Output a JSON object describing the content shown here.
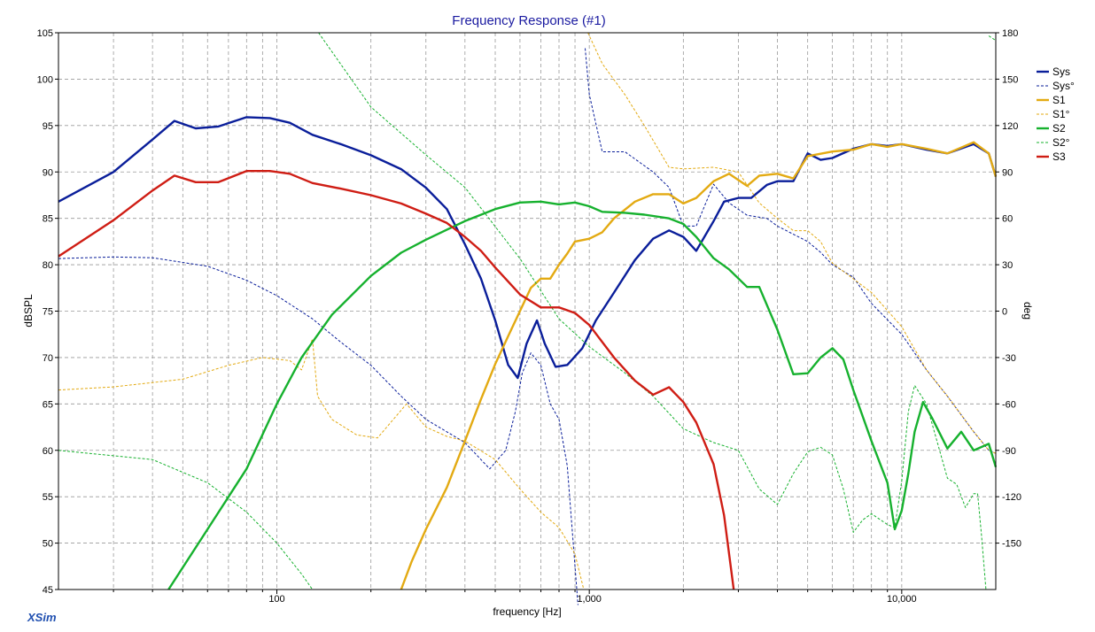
{
  "app": {
    "brand": "XSim"
  },
  "chart_data": {
    "type": "line",
    "title": "Frequency Response (#1)",
    "xlabel": "frequency [Hz]",
    "ylabel": "dBSPL",
    "y2label": "deg",
    "x_scale": "log",
    "xlim": [
      20,
      20000
    ],
    "ylim": [
      45,
      105
    ],
    "y2lim": [
      -180,
      180
    ],
    "grid": true,
    "legend_position": "right",
    "x_tick_labels": [
      {
        "value": 100,
        "label": "100"
      },
      {
        "value": 1000,
        "label": "1,000"
      },
      {
        "value": 10000,
        "label": "10,000"
      }
    ],
    "y_ticks": [
      45,
      50,
      55,
      60,
      65,
      70,
      75,
      80,
      85,
      90,
      95,
      100,
      105
    ],
    "y2_ticks": [
      -150,
      -120,
      -90,
      -60,
      -30,
      0,
      30,
      60,
      90,
      120,
      150,
      180
    ],
    "series": [
      {
        "name": "Sys",
        "axis": "left",
        "style": "solid",
        "color": "#0a1e9a",
        "points": [
          [
            20,
            86.8
          ],
          [
            30,
            90
          ],
          [
            40,
            93.5
          ],
          [
            47,
            95.5
          ],
          [
            55,
            94.7
          ],
          [
            65,
            94.9
          ],
          [
            80,
            95.9
          ],
          [
            95,
            95.8
          ],
          [
            110,
            95.3
          ],
          [
            130,
            94
          ],
          [
            160,
            93
          ],
          [
            200,
            91.8
          ],
          [
            250,
            90.3
          ],
          [
            300,
            88.3
          ],
          [
            350,
            86
          ],
          [
            400,
            82.2
          ],
          [
            450,
            78.5
          ],
          [
            500,
            74
          ],
          [
            550,
            69.2
          ],
          [
            590,
            67.8
          ],
          [
            630,
            71.5
          ],
          [
            680,
            74
          ],
          [
            720,
            71.5
          ],
          [
            780,
            69
          ],
          [
            850,
            69.2
          ],
          [
            950,
            71
          ],
          [
            1050,
            74
          ],
          [
            1200,
            77
          ],
          [
            1400,
            80.5
          ],
          [
            1600,
            82.8
          ],
          [
            1800,
            83.7
          ],
          [
            2000,
            83
          ],
          [
            2200,
            81.5
          ],
          [
            2500,
            84.7
          ],
          [
            2700,
            86.8
          ],
          [
            3000,
            87.2
          ],
          [
            3300,
            87.2
          ],
          [
            3700,
            88.6
          ],
          [
            4000,
            89
          ],
          [
            4500,
            89
          ],
          [
            5000,
            92
          ],
          [
            5500,
            91.3
          ],
          [
            6000,
            91.5
          ],
          [
            7000,
            92.5
          ],
          [
            8000,
            93
          ],
          [
            9000,
            92.8
          ],
          [
            10000,
            93
          ],
          [
            12000,
            92.4
          ],
          [
            14000,
            92
          ],
          [
            17000,
            93
          ],
          [
            19000,
            92
          ],
          [
            20000,
            89.5
          ]
        ]
      },
      {
        "name": "Sys°",
        "axis": "right",
        "style": "dashed",
        "color": "#0a1e9a",
        "points": [
          [
            20,
            34
          ],
          [
            30,
            35
          ],
          [
            40,
            34.5
          ],
          [
            60,
            29
          ],
          [
            80,
            20
          ],
          [
            100,
            10
          ],
          [
            130,
            -5
          ],
          [
            160,
            -20
          ],
          [
            200,
            -35
          ],
          [
            250,
            -55
          ],
          [
            300,
            -70
          ],
          [
            400,
            -85
          ],
          [
            480,
            -102
          ],
          [
            540,
            -90
          ],
          [
            580,
            -65
          ],
          [
            610,
            -40
          ],
          [
            650,
            -27
          ],
          [
            700,
            -35
          ],
          [
            750,
            -60
          ],
          [
            800,
            -70
          ],
          [
            850,
            -100
          ],
          [
            920,
            -190
          ],
          [
            970,
            170
          ],
          [
            1000,
            140
          ],
          [
            1100,
            103
          ],
          [
            1300,
            103
          ],
          [
            1600,
            90
          ],
          [
            1800,
            80
          ],
          [
            2000,
            55
          ],
          [
            2200,
            55
          ],
          [
            2500,
            82
          ],
          [
            2800,
            70
          ],
          [
            3200,
            62
          ],
          [
            3700,
            60
          ],
          [
            4000,
            55
          ],
          [
            5000,
            45
          ],
          [
            5500,
            38
          ],
          [
            6000,
            30
          ],
          [
            7000,
            22
          ],
          [
            8000,
            5
          ],
          [
            10000,
            -15
          ],
          [
            12000,
            -38
          ],
          [
            14000,
            -55
          ],
          [
            17000,
            -78
          ],
          [
            19000,
            -90
          ],
          [
            20000,
            -92
          ]
        ]
      },
      {
        "name": "S1",
        "axis": "left",
        "style": "solid",
        "color": "#e3aa12",
        "points": [
          [
            250,
            45
          ],
          [
            270,
            48
          ],
          [
            300,
            51.5
          ],
          [
            350,
            56
          ],
          [
            400,
            61
          ],
          [
            450,
            65.5
          ],
          [
            500,
            69.3
          ],
          [
            550,
            72.3
          ],
          [
            600,
            75
          ],
          [
            650,
            77.5
          ],
          [
            700,
            78.5
          ],
          [
            750,
            78.5
          ],
          [
            800,
            80
          ],
          [
            850,
            81.2
          ],
          [
            900,
            82.5
          ],
          [
            1000,
            82.8
          ],
          [
            1100,
            83.5
          ],
          [
            1200,
            85
          ],
          [
            1400,
            86.8
          ],
          [
            1600,
            87.6
          ],
          [
            1800,
            87.6
          ],
          [
            2000,
            86.6
          ],
          [
            2200,
            87.2
          ],
          [
            2500,
            89
          ],
          [
            2800,
            89.8
          ],
          [
            3200,
            88.5
          ],
          [
            3500,
            89.6
          ],
          [
            4000,
            89.8
          ],
          [
            4500,
            89.3
          ],
          [
            5000,
            91.7
          ],
          [
            6000,
            92.2
          ],
          [
            7000,
            92.4
          ],
          [
            8000,
            93
          ],
          [
            9000,
            92.7
          ],
          [
            10000,
            93
          ],
          [
            12000,
            92.5
          ],
          [
            14000,
            92
          ],
          [
            17000,
            93.2
          ],
          [
            19000,
            92
          ],
          [
            20000,
            89.5
          ]
        ]
      },
      {
        "name": "S1°",
        "axis": "right",
        "style": "dashed",
        "color": "#e3aa12",
        "points": [
          [
            20,
            -51
          ],
          [
            30,
            -49
          ],
          [
            50,
            -44
          ],
          [
            70,
            -35
          ],
          [
            90,
            -30
          ],
          [
            110,
            -32
          ],
          [
            120,
            -38
          ],
          [
            130,
            -18
          ],
          [
            135,
            -55
          ],
          [
            150,
            -70
          ],
          [
            180,
            -80
          ],
          [
            210,
            -82
          ],
          [
            260,
            -60
          ],
          [
            300,
            -75
          ],
          [
            350,
            -81
          ],
          [
            400,
            -84
          ],
          [
            500,
            -96
          ],
          [
            600,
            -115
          ],
          [
            700,
            -130
          ],
          [
            800,
            -140
          ],
          [
            900,
            -157
          ],
          [
            960,
            -180
          ],
          [
            990,
            180
          ],
          [
            1100,
            160
          ],
          [
            1300,
            140
          ],
          [
            1500,
            120
          ],
          [
            1800,
            93
          ],
          [
            2000,
            92
          ],
          [
            2500,
            93
          ],
          [
            3000,
            90
          ],
          [
            3500,
            70
          ],
          [
            4000,
            60
          ],
          [
            4500,
            52
          ],
          [
            5000,
            52
          ],
          [
            5500,
            45
          ],
          [
            6000,
            31
          ],
          [
            8000,
            12
          ],
          [
            10000,
            -10
          ],
          [
            12000,
            -38
          ],
          [
            14000,
            -55
          ],
          [
            17000,
            -78
          ],
          [
            19000,
            -90
          ],
          [
            20000,
            -92
          ]
        ]
      },
      {
        "name": "S2",
        "axis": "left",
        "style": "solid",
        "color": "#16b12e",
        "points": [
          [
            45,
            45
          ],
          [
            60,
            51.5
          ],
          [
            80,
            58
          ],
          [
            100,
            65
          ],
          [
            120,
            70
          ],
          [
            150,
            74.6
          ],
          [
            200,
            78.8
          ],
          [
            250,
            81.3
          ],
          [
            300,
            82.7
          ],
          [
            400,
            84.7
          ],
          [
            500,
            86
          ],
          [
            600,
            86.7
          ],
          [
            700,
            86.8
          ],
          [
            800,
            86.5
          ],
          [
            900,
            86.7
          ],
          [
            1000,
            86.3
          ],
          [
            1100,
            85.7
          ],
          [
            1300,
            85.6
          ],
          [
            1500,
            85.4
          ],
          [
            1800,
            85
          ],
          [
            2000,
            84.4
          ],
          [
            2200,
            83
          ],
          [
            2500,
            80.7
          ],
          [
            2800,
            79.5
          ],
          [
            3200,
            77.6
          ],
          [
            3500,
            77.6
          ],
          [
            4000,
            73
          ],
          [
            4500,
            68.2
          ],
          [
            5000,
            68.3
          ],
          [
            5500,
            70
          ],
          [
            6000,
            71
          ],
          [
            6500,
            69.8
          ],
          [
            7000,
            66.5
          ],
          [
            8000,
            61
          ],
          [
            9000,
            56.5
          ],
          [
            9500,
            51.5
          ],
          [
            10000,
            53.5
          ],
          [
            10500,
            57.5
          ],
          [
            11000,
            62
          ],
          [
            11700,
            65.2
          ],
          [
            12500,
            63.5
          ],
          [
            14000,
            60.2
          ],
          [
            15500,
            62
          ],
          [
            17000,
            60
          ],
          [
            19000,
            60.7
          ],
          [
            20000,
            58.2
          ]
        ]
      },
      {
        "name": "S2°",
        "axis": "right",
        "style": "dashed",
        "color": "#16b12e",
        "points": [
          [
            20,
            -90
          ],
          [
            40,
            -96
          ],
          [
            60,
            -111
          ],
          [
            80,
            -130
          ],
          [
            100,
            -150
          ],
          [
            120,
            -170
          ],
          [
            130,
            -180
          ],
          [
            136,
            180
          ],
          [
            200,
            132
          ],
          [
            300,
            101
          ],
          [
            400,
            80
          ],
          [
            600,
            34
          ],
          [
            800,
            -5
          ],
          [
            1000,
            -23
          ],
          [
            1300,
            -40
          ],
          [
            1600,
            -55
          ],
          [
            2000,
            -76
          ],
          [
            2500,
            -85
          ],
          [
            3000,
            -90
          ],
          [
            3500,
            -115
          ],
          [
            4000,
            -125
          ],
          [
            4500,
            -105
          ],
          [
            5000,
            -91
          ],
          [
            5500,
            -88
          ],
          [
            6000,
            -93
          ],
          [
            6500,
            -115
          ],
          [
            7000,
            -143
          ],
          [
            7500,
            -135
          ],
          [
            8000,
            -131
          ],
          [
            9000,
            -138
          ],
          [
            9500,
            -140
          ],
          [
            10000,
            -110
          ],
          [
            10500,
            -65
          ],
          [
            11000,
            -48
          ],
          [
            12000,
            -60
          ],
          [
            14000,
            -108
          ],
          [
            15000,
            -112
          ],
          [
            16000,
            -127
          ],
          [
            17000,
            -118
          ],
          [
            17500,
            -118
          ],
          [
            18000,
            -145
          ],
          [
            18600,
            -180
          ],
          [
            19000,
            178
          ],
          [
            20000,
            175
          ]
        ]
      },
      {
        "name": "S3",
        "axis": "left",
        "style": "solid",
        "color": "#cf1d14",
        "points": [
          [
            20,
            80.9
          ],
          [
            30,
            84.8
          ],
          [
            40,
            88
          ],
          [
            47,
            89.6
          ],
          [
            55,
            88.9
          ],
          [
            65,
            88.9
          ],
          [
            80,
            90.1
          ],
          [
            95,
            90.1
          ],
          [
            110,
            89.8
          ],
          [
            130,
            88.8
          ],
          [
            160,
            88.2
          ],
          [
            200,
            87.5
          ],
          [
            250,
            86.6
          ],
          [
            300,
            85.5
          ],
          [
            350,
            84.5
          ],
          [
            400,
            83
          ],
          [
            450,
            81.5
          ],
          [
            500,
            79.7
          ],
          [
            600,
            76.8
          ],
          [
            700,
            75.4
          ],
          [
            800,
            75.4
          ],
          [
            900,
            74.8
          ],
          [
            1000,
            73.5
          ],
          [
            1200,
            70
          ],
          [
            1400,
            67.5
          ],
          [
            1600,
            66
          ],
          [
            1800,
            66.8
          ],
          [
            2000,
            65.2
          ],
          [
            2200,
            63
          ],
          [
            2500,
            58.5
          ],
          [
            2700,
            53
          ],
          [
            2900,
            45
          ]
        ]
      }
    ]
  }
}
